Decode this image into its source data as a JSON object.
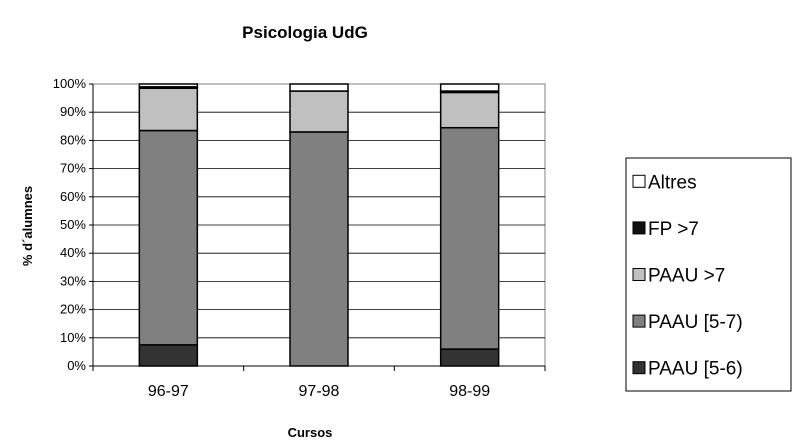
{
  "chart_data": {
    "type": "bar",
    "stacked": "percent",
    "title": "Psicologia UdG",
    "xlabel": "Cursos",
    "ylabel": "% d´alumnes",
    "ylim": [
      0,
      100
    ],
    "yticks": [
      "0%",
      "10%",
      "20%",
      "30%",
      "40%",
      "50%",
      "60%",
      "70%",
      "80%",
      "90%",
      "100%"
    ],
    "categories": [
      "96-97",
      "97-98",
      "98-99"
    ],
    "series": [
      {
        "name": "PAAU [5-6)",
        "color": "#333333",
        "values": [
          7.5,
          0,
          6
        ]
      },
      {
        "name": "PAAU [5-7)",
        "color": "#808080",
        "values": [
          76,
          83,
          78.5
        ]
      },
      {
        "name": "PAAU >7",
        "color": "#c0c0c0",
        "values": [
          15,
          14.5,
          12.5
        ]
      },
      {
        "name": "FP >7",
        "color": "#111111",
        "values": [
          0.5,
          0,
          0.5
        ]
      },
      {
        "name": "Altres",
        "color": "#ffffff",
        "values": [
          1,
          2.5,
          2.5
        ]
      }
    ],
    "legend": {
      "position": "right",
      "order": [
        "Altres",
        "FP >7",
        "PAAU >7",
        "PAAU [5-7)",
        "PAAU [5-6)"
      ]
    },
    "grid": true
  }
}
